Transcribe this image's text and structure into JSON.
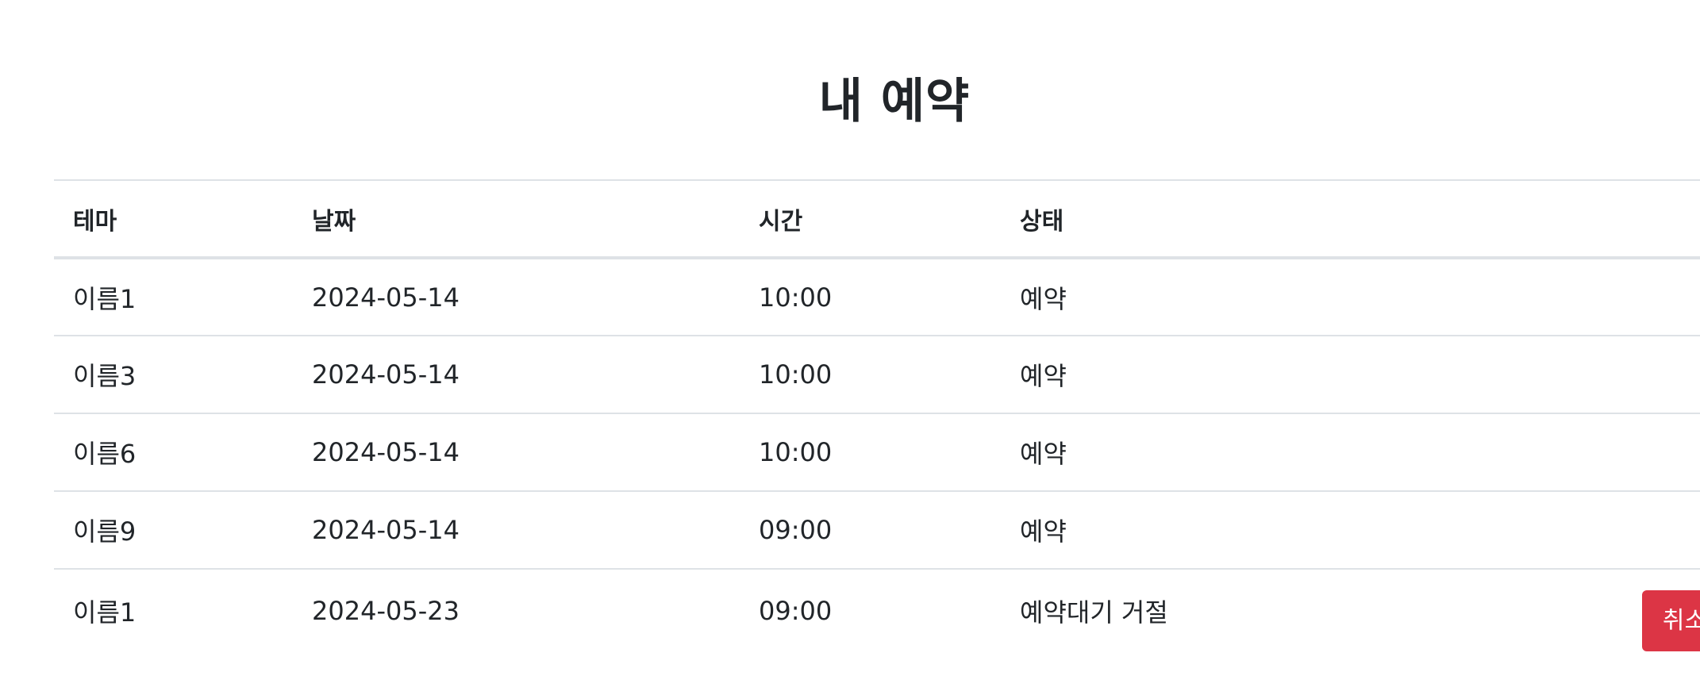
{
  "page": {
    "title": "내 예약"
  },
  "table": {
    "headers": {
      "theme": "테마",
      "date": "날짜",
      "time": "시간",
      "status": "상태"
    },
    "rows": [
      {
        "theme": "이름1",
        "date": "2024-05-14",
        "time": "10:00",
        "status": "예약",
        "action": null
      },
      {
        "theme": "이름3",
        "date": "2024-05-14",
        "time": "10:00",
        "status": "예약",
        "action": null
      },
      {
        "theme": "이름6",
        "date": "2024-05-14",
        "time": "10:00",
        "status": "예약",
        "action": null
      },
      {
        "theme": "이름9",
        "date": "2024-05-14",
        "time": "09:00",
        "status": "예약",
        "action": null
      },
      {
        "theme": "이름1",
        "date": "2024-05-23",
        "time": "09:00",
        "status": "예약대기 거절",
        "action": "취소"
      }
    ]
  },
  "colors": {
    "cancel_button_bg": "#dc3545",
    "text": "#212529",
    "border": "#dee2e6"
  }
}
